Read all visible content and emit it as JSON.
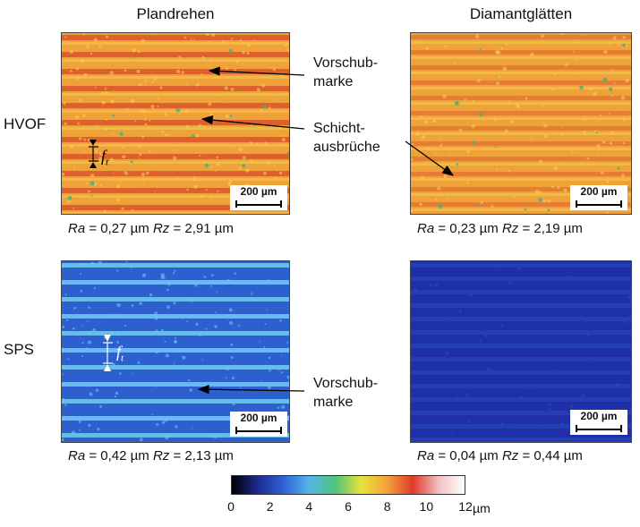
{
  "columns": {
    "left": "Plandrehen",
    "right": "Diamantglätten"
  },
  "rows": {
    "top": "HVOF",
    "bottom": "SPS"
  },
  "annotations": {
    "vorschub_top": [
      "Vorschub-",
      "marke"
    ],
    "schicht": [
      "Schicht-",
      "ausbrüche"
    ],
    "vorschub_bottom": [
      "Vorschub-",
      "marke"
    ],
    "ft_symbol": "f",
    "ft_subscript": "t"
  },
  "scale_bar_label": "200 µm",
  "measurements": {
    "hvof_plan": {
      "ra_label": "Ra",
      "ra": " = 0,27 µm ",
      "rz_label": "Rz",
      "rz": " = 2,91 µm"
    },
    "hvof_diamant": {
      "ra_label": "Ra",
      "ra": " = 0,23 µm ",
      "rz_label": "Rz",
      "rz": " = 2,19 µm"
    },
    "sps_plan": {
      "ra_label": "Ra",
      "ra": " = 0,42 µm ",
      "rz_label": "Rz",
      "rz": " = 2,13 µm"
    },
    "sps_diamant": {
      "ra_label": "Ra",
      "ra": " = 0,04 µm ",
      "rz_label": "Rz",
      "rz": " = 0,44 µm"
    }
  },
  "colorbar": {
    "ticks": [
      "0",
      "2",
      "4",
      "6",
      "8",
      "10",
      "12"
    ],
    "unit": "µm",
    "stops": [
      "#000000",
      "#1b2a8f",
      "#2f62d8",
      "#54b6e8",
      "#4fc47a",
      "#e8e23a",
      "#f3a23a",
      "#df3a2a",
      "#f3c0c0",
      "#ffffff"
    ]
  },
  "colors": {
    "hvof_base": "#f0a23a",
    "hvof_stripe": "#d8502a",
    "hvof_highlight": "#f5cf55",
    "hvof_defect": "#49b27c",
    "sps_plan_base": "#2e5fcf",
    "sps_plan_stripe": "#6ec6ef",
    "sps_diamant_base": "#1e2fa8",
    "sps_diamant_stripe": "#2a48c0"
  }
}
